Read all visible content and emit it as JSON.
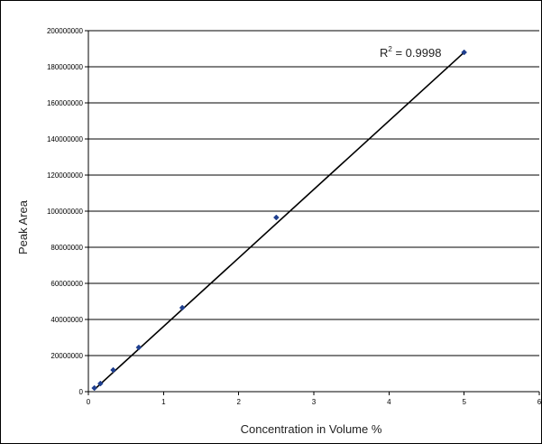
{
  "chart_data": {
    "type": "scatter",
    "title": "",
    "xlabel": "Concentration in Volume %",
    "ylabel": "Peak Area",
    "xlim": [
      0,
      6
    ],
    "ylim": [
      0,
      200000000
    ],
    "x_ticks": [
      "0",
      "1",
      "2",
      "3",
      "4",
      "5",
      "6"
    ],
    "y_ticks": [
      "0",
      "20000000",
      "40000000",
      "60000000",
      "80000000",
      "100000000",
      "120000000",
      "140000000",
      "160000000",
      "180000000",
      "200000000"
    ],
    "grid": "horizontal major gridlines",
    "legend": "none",
    "series": [
      {
        "marker": "diamond",
        "color": "#1f3f8f",
        "x": [
          0.08,
          0.16,
          0.33,
          0.67,
          1.25,
          2.5,
          5.0
        ],
        "y": [
          2000000,
          4500000,
          12000000,
          24500000,
          46500000,
          96500000,
          188000000
        ]
      }
    ],
    "trendline": {
      "type": "linear",
      "color": "#000000",
      "x_start": 0.08,
      "x_end": 5.0,
      "y_start": 1200000,
      "y_end": 188000000
    },
    "annotation": {
      "r2_label": "R",
      "r2_sup": "2",
      "r2_value": " = 0.9998"
    }
  }
}
